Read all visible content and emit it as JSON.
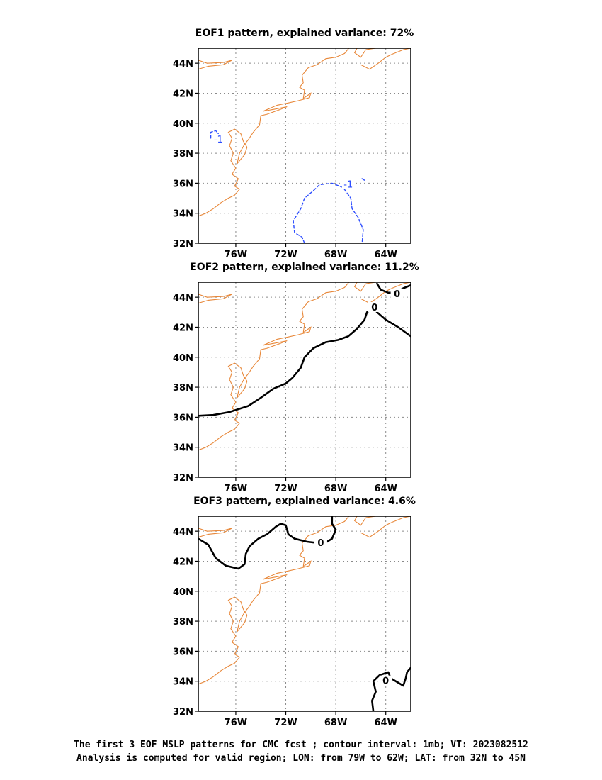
{
  "colors": {
    "coast": "#e8883a",
    "negative_contour": "#2b4cff",
    "zero_contour": "#000000",
    "grid": "#8a8a8a"
  },
  "map": {
    "lon_range": [
      -79,
      -62
    ],
    "lat_range": [
      32,
      45
    ],
    "lon_ticks": [
      -76,
      -72,
      -68,
      -64
    ],
    "lon_tick_labels": [
      "76W",
      "72W",
      "68W",
      "64W"
    ],
    "lat_ticks": [
      44,
      42,
      40,
      38,
      36,
      34,
      32
    ],
    "lat_tick_labels": [
      "44N",
      "42N",
      "40N",
      "38N",
      "36N",
      "34N",
      "32N"
    ],
    "grid": "dotted"
  },
  "panels": [
    {
      "title": "EOF1 pattern, explained variance: 72%",
      "contours": [
        {
          "value": -1,
          "style": "dashed",
          "color": "#2b4cff",
          "points": [
            [
              -78.0,
              39.0
            ],
            [
              -78.0,
              39.4
            ],
            [
              -77.6,
              39.5
            ],
            [
              -77.4,
              39.3
            ]
          ]
        },
        {
          "value": -1,
          "style": "dashed",
          "color": "#2b4cff",
          "points": [
            [
              -70.5,
              32.0
            ],
            [
              -70.7,
              32.4
            ],
            [
              -71.3,
              32.7
            ],
            [
              -71.4,
              33.5
            ],
            [
              -70.8,
              34.3
            ],
            [
              -70.5,
              35.0
            ],
            [
              -69.8,
              35.5
            ],
            [
              -69.3,
              35.9
            ],
            [
              -68.3,
              36.0
            ],
            [
              -67.4,
              35.7
            ],
            [
              -66.8,
              35.0
            ],
            [
              -66.7,
              34.3
            ],
            [
              -66.2,
              33.7
            ],
            [
              -65.8,
              32.9
            ],
            [
              -65.9,
              32.0
            ]
          ]
        },
        {
          "value": -1,
          "style": "dashed",
          "color": "#2b4cff",
          "points": [
            [
              -65.9,
              36.3
            ],
            [
              -65.7,
              36.2
            ]
          ]
        }
      ],
      "labels": [
        {
          "text": "-1",
          "lon": -77.4,
          "lat": 38.9
        },
        {
          "text": "-1",
          "lon": -67.0,
          "lat": 35.9
        }
      ]
    },
    {
      "title": "EOF2 pattern, explained variance: 11.2%",
      "contours": [
        {
          "value": 0,
          "style": "solid",
          "color": "#000000",
          "points": [
            [
              -79.0,
              36.1
            ],
            [
              -77.8,
              36.15
            ],
            [
              -76.5,
              36.35
            ],
            [
              -75.0,
              36.75
            ],
            [
              -74.0,
              37.3
            ],
            [
              -73.0,
              37.9
            ],
            [
              -72.0,
              38.25
            ],
            [
              -71.5,
              38.6
            ],
            [
              -70.8,
              39.3
            ],
            [
              -70.5,
              40.0
            ],
            [
              -69.8,
              40.6
            ],
            [
              -68.8,
              41.0
            ],
            [
              -67.8,
              41.15
            ],
            [
              -67.0,
              41.4
            ],
            [
              -66.3,
              41.9
            ],
            [
              -65.7,
              42.5
            ],
            [
              -65.5,
              43.0
            ],
            [
              -65.0,
              43.3
            ],
            [
              -64.7,
              43.0
            ],
            [
              -64.0,
              42.5
            ],
            [
              -63.0,
              42.0
            ],
            [
              -62.0,
              41.4
            ]
          ]
        },
        {
          "value": 0,
          "style": "solid",
          "color": "#000000",
          "points": [
            [
              -64.7,
              44.9
            ],
            [
              -64.4,
              44.5
            ],
            [
              -63.8,
              44.3
            ],
            [
              -63.2,
              44.3
            ],
            [
              -62.6,
              44.6
            ],
            [
              -62.0,
              44.8
            ]
          ]
        }
      ],
      "labels": [
        {
          "text": "0",
          "lon": -64.9,
          "lat": 43.3
        },
        {
          "text": "0",
          "lon": -63.1,
          "lat": 44.2
        }
      ]
    },
    {
      "title": "EOF3 pattern, explained variance: 4.6%",
      "contours": [
        {
          "value": 0,
          "style": "solid",
          "color": "#000000",
          "points": [
            [
              -79.0,
              43.5
            ],
            [
              -78.2,
              43.1
            ],
            [
              -77.6,
              42.2
            ],
            [
              -76.8,
              41.7
            ],
            [
              -75.8,
              41.5
            ],
            [
              -75.3,
              41.8
            ],
            [
              -75.2,
              42.5
            ],
            [
              -74.9,
              43.0
            ],
            [
              -74.2,
              43.5
            ],
            [
              -73.5,
              43.8
            ],
            [
              -72.8,
              44.3
            ],
            [
              -72.4,
              44.5
            ],
            [
              -72.0,
              44.4
            ],
            [
              -71.8,
              43.8
            ],
            [
              -71.3,
              43.5
            ],
            [
              -70.3,
              43.3
            ],
            [
              -69.3,
              43.2
            ],
            [
              -68.7,
              43.3
            ],
            [
              -68.3,
              43.5
            ],
            [
              -68.0,
              44.1
            ],
            [
              -68.3,
              44.5
            ],
            [
              -68.3,
              45.0
            ]
          ]
        },
        {
          "value": 0,
          "style": "solid",
          "color": "#000000",
          "points": [
            [
              -65.0,
              32.0
            ],
            [
              -65.1,
              32.7
            ],
            [
              -64.8,
              33.3
            ],
            [
              -65.0,
              34.0
            ],
            [
              -64.5,
              34.4
            ],
            [
              -63.8,
              34.6
            ],
            [
              -63.6,
              34.2
            ],
            [
              -63.2,
              34.0
            ],
            [
              -62.6,
              33.7
            ],
            [
              -62.4,
              34.2
            ],
            [
              -62.3,
              34.6
            ],
            [
              -62.0,
              34.9
            ]
          ]
        }
      ],
      "labels": [
        {
          "text": "0",
          "lon": -69.2,
          "lat": 43.2
        },
        {
          "text": "0",
          "lon": -64.0,
          "lat": 34.0
        }
      ]
    }
  ],
  "coastlines": [
    [
      [
        -79.0,
        43.6
      ],
      [
        -78.2,
        43.8
      ],
      [
        -77.0,
        43.9
      ],
      [
        -76.3,
        44.2
      ],
      [
        -77.0,
        44.05
      ],
      [
        -78.3,
        44.0
      ],
      [
        -79.0,
        44.2
      ]
    ],
    [
      [
        -79.0,
        33.8
      ],
      [
        -78.4,
        34.0
      ],
      [
        -77.8,
        34.3
      ],
      [
        -77.2,
        34.7
      ],
      [
        -76.6,
        35.0
      ],
      [
        -76.1,
        35.2
      ],
      [
        -75.7,
        35.6
      ],
      [
        -76.1,
        35.8
      ],
      [
        -75.8,
        36.3
      ],
      [
        -76.3,
        36.6
      ],
      [
        -76.0,
        37.0
      ],
      [
        -76.4,
        37.5
      ],
      [
        -76.2,
        38.0
      ],
      [
        -76.5,
        38.5
      ],
      [
        -76.3,
        39.0
      ],
      [
        -76.6,
        39.4
      ],
      [
        -76.1,
        39.6
      ],
      [
        -75.6,
        39.3
      ],
      [
        -75.4,
        38.8
      ],
      [
        -75.1,
        38.4
      ],
      [
        -75.3,
        37.9
      ],
      [
        -75.9,
        37.3
      ],
      [
        -75.7,
        38.0
      ],
      [
        -75.3,
        38.6
      ],
      [
        -75.0,
        38.9
      ],
      [
        -74.6,
        39.4
      ],
      [
        -74.1,
        39.9
      ],
      [
        -74.0,
        40.5
      ],
      [
        -73.5,
        40.6
      ],
      [
        -72.5,
        40.9
      ],
      [
        -71.9,
        41.1
      ],
      [
        -72.8,
        40.95
      ],
      [
        -73.8,
        40.8
      ],
      [
        -72.7,
        41.2
      ],
      [
        -71.8,
        41.35
      ],
      [
        -71.0,
        41.5
      ],
      [
        -70.1,
        41.7
      ],
      [
        -70.0,
        42.0
      ],
      [
        -70.6,
        41.65
      ],
      [
        -70.5,
        42.2
      ],
      [
        -70.9,
        42.4
      ],
      [
        -70.6,
        42.7
      ],
      [
        -70.7,
        43.2
      ],
      [
        -70.2,
        43.7
      ],
      [
        -69.5,
        43.9
      ],
      [
        -68.8,
        44.3
      ],
      [
        -68.0,
        44.4
      ],
      [
        -67.3,
        44.65
      ],
      [
        -66.95,
        45.0
      ]
    ],
    [
      [
        -66.3,
        45.0
      ],
      [
        -66.5,
        44.7
      ],
      [
        -66.0,
        44.4
      ],
      [
        -65.6,
        44.9
      ]
    ],
    [
      [
        -65.6,
        44.9
      ],
      [
        -64.8,
        45.0
      ]
    ],
    [
      [
        -66.0,
        43.9
      ],
      [
        -65.3,
        43.6
      ],
      [
        -64.6,
        44.0
      ],
      [
        -64.0,
        44.4
      ],
      [
        -63.5,
        44.6
      ],
      [
        -62.6,
        44.9
      ],
      [
        -62.0,
        45.0
      ]
    ]
  ],
  "caption": [
    "The first 3 EOF MSLP patterns for CMC fcst ; contour interval: 1mb; VT: 2023082512",
    "Analysis is computed for valid region; LON: from 79W to 62W; LAT: from 32N to 45N"
  ]
}
